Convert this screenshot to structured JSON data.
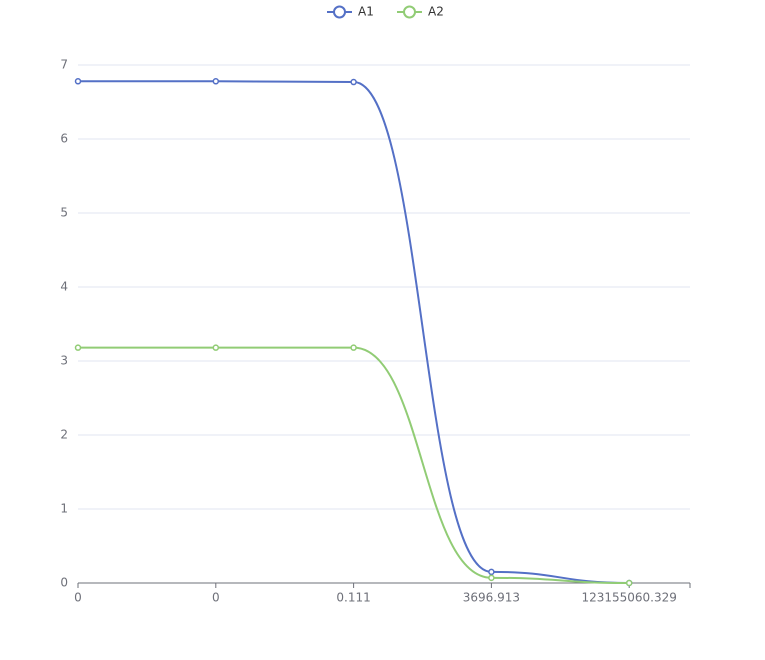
{
  "chart_data": {
    "type": "line",
    "categories": [
      "0",
      "0",
      "0.111",
      "3696.913",
      "123155060.329"
    ],
    "series": [
      {
        "name": "A1",
        "color": "#5470c6",
        "values": [
          6.78,
          6.78,
          6.77,
          0.15,
          0
        ]
      },
      {
        "name": "A2",
        "color": "#91cc75",
        "values": [
          3.18,
          3.18,
          3.18,
          0.07,
          0
        ]
      }
    ],
    "ylim": [
      0,
      7
    ],
    "yticks": [
      0,
      1,
      2,
      3,
      4,
      5,
      6,
      7
    ],
    "grid": true,
    "legend": "top",
    "smooth": true
  }
}
